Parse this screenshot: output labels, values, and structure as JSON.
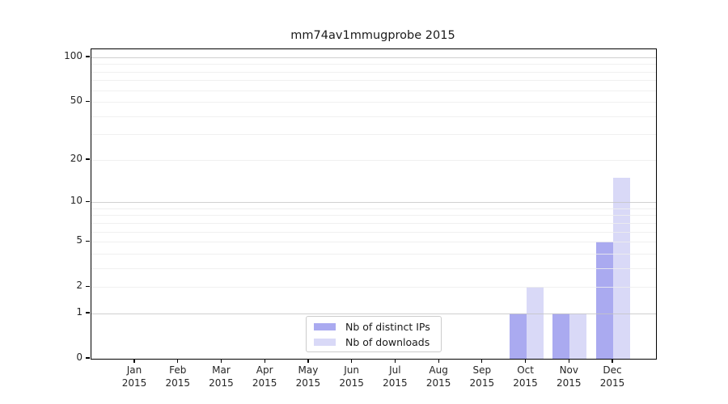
{
  "title": "mm74av1mmugprobe 2015",
  "chart_data": {
    "type": "bar",
    "title": "mm74av1mmugprobe 2015",
    "x_categories": [
      {
        "month": "Jan",
        "year": "2015"
      },
      {
        "month": "Feb",
        "year": "2015"
      },
      {
        "month": "Mar",
        "year": "2015"
      },
      {
        "month": "Apr",
        "year": "2015"
      },
      {
        "month": "May",
        "year": "2015"
      },
      {
        "month": "Jun",
        "year": "2015"
      },
      {
        "month": "Jul",
        "year": "2015"
      },
      {
        "month": "Aug",
        "year": "2015"
      },
      {
        "month": "Sep",
        "year": "2015"
      },
      {
        "month": "Oct",
        "year": "2015"
      },
      {
        "month": "Nov",
        "year": "2015"
      },
      {
        "month": "Dec",
        "year": "2015"
      }
    ],
    "series": [
      {
        "name": "Nb of distinct IPs",
        "color": "#aaaaf0",
        "values": [
          0,
          0,
          0,
          0,
          0,
          0,
          0,
          0,
          0,
          1,
          1,
          5
        ]
      },
      {
        "name": "Nb of downloads",
        "color": "#d9d9f7",
        "values": [
          0,
          0,
          0,
          0,
          0,
          0,
          0,
          0,
          0,
          2,
          1,
          15
        ]
      }
    ],
    "y_scale": "log1p",
    "ylim": [
      0,
      100
    ],
    "y_ticks": [
      0,
      1,
      2,
      5,
      10,
      20,
      50,
      100
    ],
    "y_major_gridlines": [
      1,
      10,
      100
    ],
    "y_minor_gridlines": [
      2,
      3,
      4,
      5,
      6,
      7,
      8,
      9,
      20,
      30,
      40,
      50,
      60,
      70,
      80,
      90
    ],
    "grid": "on",
    "legend_position": "lower center",
    "xlabel": "",
    "ylabel": ""
  }
}
